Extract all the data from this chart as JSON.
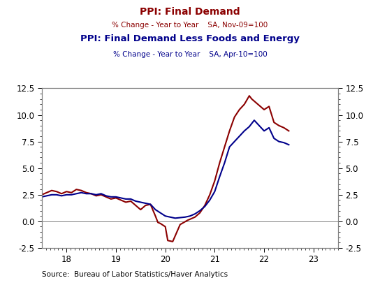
{
  "title_red_line1": "PPI: Final Demand",
  "title_red_line2": "% Change - Year to Year    SA, Nov-09=100",
  "title_blue_line1": "PPI: Final Demand Less Foods and Energy",
  "title_blue_line2": "% Change - Year to Year    SA, Apr-10=100",
  "source_text": "Source:  Bureau of Labor Statistics/Haver Analytics",
  "red_color": "#8B0000",
  "blue_color": "#00008B",
  "ylim": [
    -2.5,
    12.5
  ],
  "xlim": [
    17.5,
    23.5
  ],
  "yticks": [
    -2.5,
    0.0,
    2.5,
    5.0,
    7.5,
    10.0,
    12.5
  ],
  "xticks": [
    18,
    19,
    20,
    21,
    22,
    23
  ],
  "red_x": [
    17.5,
    17.6,
    17.7,
    17.8,
    17.9,
    18.0,
    18.1,
    18.2,
    18.3,
    18.4,
    18.5,
    18.6,
    18.7,
    18.8,
    18.9,
    19.0,
    19.1,
    19.2,
    19.3,
    19.4,
    19.5,
    19.6,
    19.7,
    19.8,
    19.85,
    19.9,
    20.0,
    20.05,
    20.15,
    20.3,
    20.45,
    20.6,
    20.7,
    20.8,
    20.9,
    21.0,
    21.1,
    21.2,
    21.3,
    21.4,
    21.5,
    21.6,
    21.7,
    21.75,
    21.85,
    21.9,
    22.0,
    22.1,
    22.2,
    22.3,
    22.4,
    22.5
  ],
  "red_y": [
    2.5,
    2.7,
    2.9,
    2.8,
    2.6,
    2.8,
    2.7,
    3.0,
    2.9,
    2.7,
    2.6,
    2.4,
    2.5,
    2.3,
    2.1,
    2.2,
    2.0,
    1.8,
    1.9,
    1.5,
    1.1,
    1.5,
    1.6,
    0.5,
    -0.1,
    -0.2,
    -0.5,
    -1.8,
    -1.9,
    -0.3,
    0.1,
    0.4,
    0.8,
    1.5,
    2.5,
    3.8,
    5.5,
    7.0,
    8.5,
    9.8,
    10.5,
    11.0,
    11.8,
    11.5,
    11.1,
    10.9,
    10.5,
    10.8,
    9.3,
    9.0,
    8.8,
    8.5
  ],
  "blue_x": [
    17.5,
    17.6,
    17.7,
    17.8,
    17.9,
    18.0,
    18.1,
    18.2,
    18.3,
    18.4,
    18.5,
    18.6,
    18.7,
    18.8,
    18.9,
    19.0,
    19.1,
    19.2,
    19.3,
    19.4,
    19.5,
    19.6,
    19.7,
    19.8,
    19.9,
    20.0,
    20.1,
    20.2,
    20.3,
    20.4,
    20.5,
    20.6,
    20.7,
    20.8,
    20.9,
    21.0,
    21.1,
    21.2,
    21.3,
    21.4,
    21.5,
    21.6,
    21.7,
    21.8,
    21.9,
    22.0,
    22.1,
    22.2,
    22.3,
    22.4,
    22.5
  ],
  "blue_y": [
    2.3,
    2.4,
    2.5,
    2.5,
    2.4,
    2.5,
    2.5,
    2.6,
    2.7,
    2.6,
    2.6,
    2.5,
    2.6,
    2.4,
    2.3,
    2.3,
    2.2,
    2.1,
    2.1,
    1.9,
    1.8,
    1.7,
    1.6,
    1.1,
    0.8,
    0.5,
    0.4,
    0.3,
    0.35,
    0.4,
    0.5,
    0.7,
    1.0,
    1.4,
    2.0,
    2.8,
    4.2,
    5.5,
    7.0,
    7.5,
    8.0,
    8.5,
    8.9,
    9.5,
    9.0,
    8.5,
    8.8,
    7.8,
    7.5,
    7.4,
    7.2
  ]
}
